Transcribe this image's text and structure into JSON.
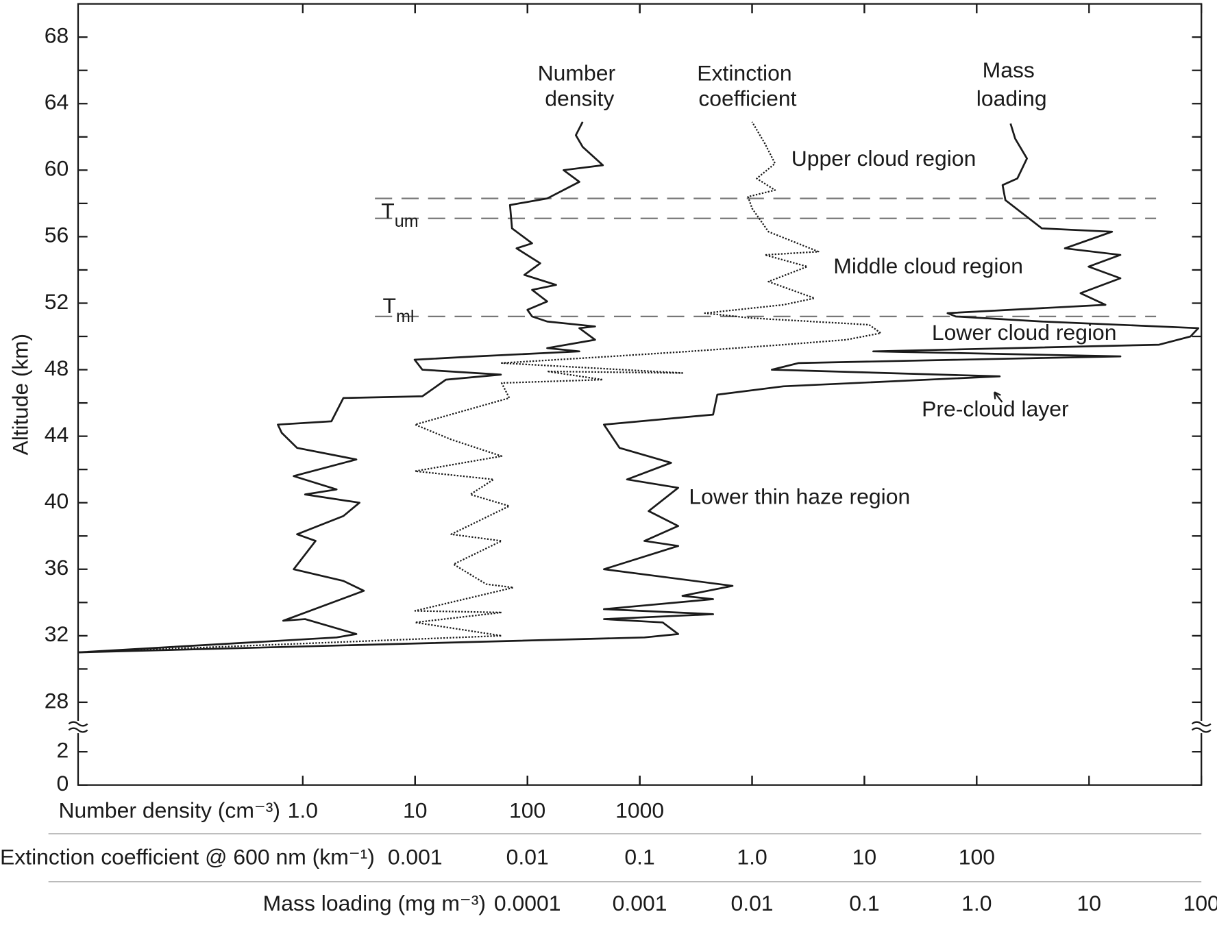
{
  "chart_data": {
    "type": "line",
    "y_label": "Altitude (km)",
    "ylim": [
      27,
      70
    ],
    "yticks": [
      28,
      32,
      36,
      40,
      44,
      48,
      52,
      56,
      60,
      64,
      68
    ],
    "lower_ylim": [
      0,
      3
    ],
    "lower_yticks": [
      0,
      2
    ],
    "log_x": true,
    "x_axes": [
      {
        "label": "Number density (cm⁻³)",
        "xlim": [
          0.01,
          100000000
        ],
        "xticks": [
          {
            "value": 1,
            "label": "1.0"
          },
          10,
          100,
          1000
        ]
      },
      {
        "label": "Extinction coefficient @ 600 nm (km⁻¹)",
        "xlim": [
          1e-06,
          10000
        ],
        "xticks": [
          0.001,
          0.01,
          0.1,
          {
            "value": 1,
            "label": "1.0"
          },
          10,
          100
        ]
      },
      {
        "label": "Mass loading (mg m⁻³)",
        "xlim": [
          1e-08,
          100
        ],
        "xticks": [
          0.0001,
          0.001,
          0.01,
          0.1,
          {
            "value": 1,
            "label": "1.0"
          },
          10,
          100
        ]
      }
    ],
    "series": [
      {
        "name": "Number density",
        "color": "#1a1a1a",
        "style": "solid",
        "x_axis": 0,
        "x": [
          0.01,
          2.0,
          3.0,
          1.05,
          0.67,
          3.5,
          2.3,
          0.83,
          1.3,
          0.89,
          2.3,
          3.2,
          1.05,
          2.0,
          0.83,
          3.0,
          0.89,
          0.65,
          0.6,
          1.8,
          2.3,
          11.6,
          18.8,
          58,
          11.6,
          9.9,
          35,
          290,
          150,
          400,
          290,
          400,
          150,
          110,
          100,
          150,
          110,
          180,
          94,
          130,
          80,
          110,
          73,
          70,
          150,
          290,
          210,
          470,
          310,
          270,
          310
        ],
        "y": [
          31.0,
          31.9,
          32.1,
          33.0,
          32.9,
          34.7,
          35.3,
          36.0,
          37.7,
          38.1,
          39.2,
          40.0,
          40.5,
          40.8,
          41.6,
          42.6,
          43.3,
          44.2,
          44.7,
          44.9,
          46.3,
          46.4,
          47.4,
          47.7,
          48.0,
          48.6,
          48.8,
          49.1,
          49.3,
          49.8,
          50.5,
          50.6,
          50.9,
          51.2,
          51.6,
          52.1,
          52.8,
          53.1,
          53.7,
          54.4,
          55.3,
          55.6,
          56.5,
          57.9,
          58.3,
          59.3,
          60.0,
          60.3,
          61.4,
          62.1,
          62.9
        ]
      },
      {
        "name": "Extinction coefficient",
        "color": "#1a1a1a",
        "style": "dotted",
        "x_axis": 1,
        "x": [
          1e-06,
          0.0059,
          0.001,
          0.0059,
          0.001,
          0.0075,
          0.0043,
          0.0022,
          0.0059,
          0.0021,
          0.0069,
          0.0031,
          0.005,
          0.001,
          0.0059,
          0.0021,
          0.001,
          0.0069,
          0.0059,
          0.047,
          0.015,
          0.24,
          0.0059,
          0.056,
          0.28,
          1.9,
          6.9,
          14,
          11,
          1.0,
          0.38,
          1.9,
          3.6,
          1.4,
          3.1,
          1.3,
          3.9,
          1.4,
          1.0,
          0.92,
          1.6,
          1.1,
          1.6,
          1.3,
          1.0
        ],
        "y": [
          31.0,
          32.0,
          32.8,
          33.4,
          33.5,
          34.9,
          35.1,
          36.3,
          37.7,
          38.1,
          39.8,
          40.5,
          41.4,
          41.9,
          42.8,
          43.8,
          44.7,
          46.3,
          47.2,
          47.4,
          47.9,
          47.8,
          48.4,
          48.8,
          49.1,
          49.5,
          49.8,
          50.2,
          50.7,
          51.1,
          51.4,
          51.9,
          52.3,
          53.3,
          54.2,
          54.9,
          55.1,
          56.3,
          57.7,
          58.4,
          58.8,
          59.5,
          60.4,
          61.6,
          62.9
        ]
      },
      {
        "name": "Mass loading",
        "color": "#1a1a1a",
        "style": "solid",
        "x_axis": 2,
        "x": [
          1e-08,
          0.0011,
          0.0022,
          0.0016,
          0.00048,
          0.0045,
          0.00048,
          0.0045,
          0.0024,
          0.0067,
          0.00048,
          0.0022,
          0.0011,
          0.0022,
          0.0012,
          0.0022,
          0.00077,
          0.0019,
          0.00066,
          0.00048,
          0.0045,
          0.0049,
          0.019,
          1.6,
          0.015,
          0.026,
          19,
          0.12,
          42,
          80,
          94,
          3.8,
          0.65,
          0.55,
          14,
          8.4,
          19,
          9.9,
          19,
          6.1,
          16,
          3.8,
          1.8,
          1.7,
          2.3,
          2.8,
          2.2,
          2.0
        ],
        "y": [
          31.0,
          31.9,
          32.1,
          32.8,
          33.0,
          33.3,
          33.6,
          34.2,
          34.4,
          35.0,
          36.0,
          37.4,
          37.7,
          38.6,
          39.5,
          40.9,
          41.4,
          42.4,
          43.3,
          44.7,
          45.3,
          46.5,
          47.0,
          47.6,
          48.0,
          48.4,
          48.8,
          49.1,
          49.5,
          50.0,
          50.5,
          50.9,
          51.2,
          51.4,
          51.9,
          52.6,
          53.5,
          54.2,
          54.9,
          55.3,
          56.3,
          56.5,
          58.2,
          59.1,
          59.5,
          60.7,
          61.9,
          62.8
        ]
      }
    ],
    "levels": [
      {
        "label": "T",
        "sub": "um",
        "altitudes": [
          58.3,
          57.1
        ]
      },
      {
        "label": "T",
        "sub": "ml",
        "altitudes": [
          51.2
        ]
      }
    ],
    "annotations": [
      "Upper cloud region",
      "Middle cloud region",
      "Lower cloud region",
      "Pre-cloud layer",
      "Lower thin haze region"
    ]
  }
}
